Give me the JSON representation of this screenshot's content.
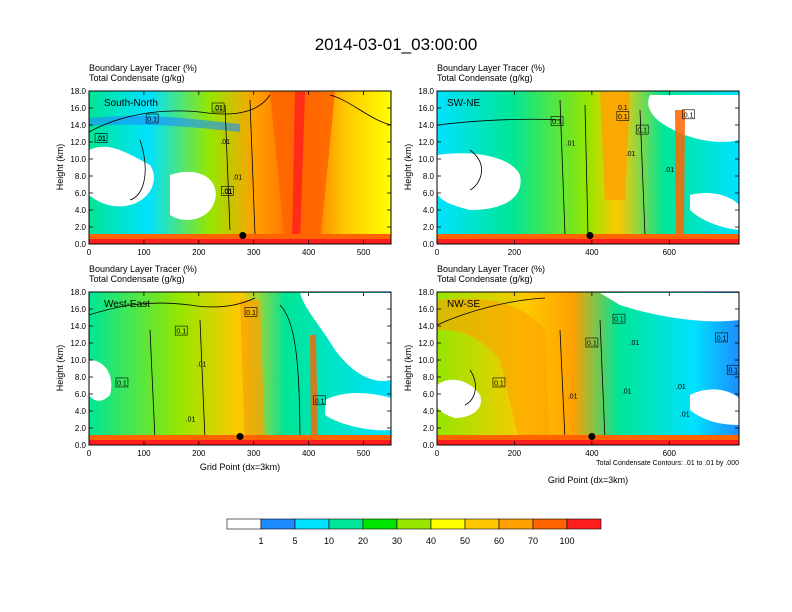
{
  "figure": {
    "title": "2014-03-01_03:00:00",
    "colorbar": {
      "colors": [
        "#ffffff",
        "#1e8cff",
        "#00e1ff",
        "#00e696",
        "#00e600",
        "#96e600",
        "#ffff00",
        "#ffc800",
        "#ffa000",
        "#ff6400",
        "#ff1e1e"
      ],
      "labels": [
        "1",
        "5",
        "10",
        "20",
        "30",
        "40",
        "50",
        "60",
        "70",
        "100"
      ]
    },
    "contour_note": "Total Condensate Contours: .01 to .01 by .000",
    "xlabel": "Grid Point (dx=3km)",
    "ylabel": "Height (km)",
    "subtitle_line1": "Boundary Layer Tracer   (%)",
    "subtitle_line2": "Total Condensate   (g/kg)"
  },
  "chart_data": [
    {
      "type": "heatmap",
      "panel": "South-North",
      "ylim": [
        0,
        18
      ],
      "xlim": [
        0,
        550
      ],
      "xticks": [
        "0",
        "100",
        "200",
        "300",
        "400",
        "500"
      ],
      "yticks": [
        "0.0",
        "2.0",
        "4.0",
        "6.0",
        "8.0",
        "10.0",
        "12.0",
        "14.0",
        "16.0",
        "18.0"
      ],
      "marker": {
        "x": 280,
        "y": 1.0
      },
      "contour_labels": [
        {
          "text": ".01",
          "x": 22,
          "y": 12.4
        },
        {
          "text": ".01",
          "x": 235,
          "y": 16.0
        },
        {
          "text": ".01",
          "x": 248,
          "y": 12.0
        },
        {
          "text": ".01",
          "x": 270,
          "y": 7.8
        },
        {
          "text": ".01",
          "x": 252,
          "y": 6.2
        }
      ],
      "condensate_labels": [
        {
          "text": ".01",
          "x": 240,
          "y": 16.7
        },
        {
          "text": ".01",
          "x": 248,
          "y": 12.0
        },
        {
          "text": ".01",
          "x": 270,
          "y": 7.8
        }
      ],
      "boxed_labels": [
        {
          "text": ".01",
          "x": 22,
          "y": 12.4
        },
        {
          "text": ".01",
          "x": 235,
          "y": 16.0
        },
        {
          "text": "0.1",
          "x": 115,
          "y": 14.7
        },
        {
          "text": ".01",
          "x": 252,
          "y": 6.2
        }
      ]
    },
    {
      "type": "heatmap",
      "panel": "SW-NE",
      "ylim": [
        0,
        18
      ],
      "xlim": [
        0,
        780
      ],
      "xticks": [
        "0",
        "200",
        "400",
        "600"
      ],
      "yticks": [
        "0.0",
        "2.0",
        "4.0",
        "6.0",
        "8.0",
        "10.0",
        "12.0",
        "14.0",
        "16.0",
        "18.0"
      ],
      "marker": {
        "x": 395,
        "y": 1.0
      },
      "contour_labels": [
        {
          "text": ".01",
          "x": 345,
          "y": 11.8
        },
        {
          "text": "0.1",
          "x": 480,
          "y": 16.0
        },
        {
          "text": ".01",
          "x": 500,
          "y": 10.6
        },
        {
          "text": ".01",
          "x": 600,
          "y": 8.7
        }
      ],
      "condensate_labels": [
        {
          "text": ".01",
          "x": 345,
          "y": 11.8
        },
        {
          "text": ".01",
          "x": 500,
          "y": 10.6
        },
        {
          "text": ".01",
          "x": 600,
          "y": 8.7
        }
      ],
      "boxed_labels": [
        {
          "text": "0.1",
          "x": 310,
          "y": 14.4
        },
        {
          "text": "0.1",
          "x": 480,
          "y": 15.0
        },
        {
          "text": "0.1",
          "x": 530,
          "y": 13.4
        },
        {
          "text": "0.1",
          "x": 650,
          "y": 15.2
        }
      ]
    },
    {
      "type": "heatmap",
      "panel": "West-East",
      "ylim": [
        0,
        18
      ],
      "xlim": [
        0,
        550
      ],
      "xticks": [
        "0",
        "100",
        "200",
        "300",
        "400",
        "500"
      ],
      "yticks": [
        "0.0",
        "2.0",
        "4.0",
        "6.0",
        "8.0",
        "10.0",
        "12.0",
        "14.0",
        "16.0",
        "18.0"
      ],
      "marker": {
        "x": 275,
        "y": 1.0
      },
      "contour_labels": [
        {
          "text": ".01",
          "x": 205,
          "y": 9.5
        },
        {
          "text": ".01",
          "x": 185,
          "y": 3.0
        }
      ],
      "condensate_labels": [
        {
          "text": ".01",
          "x": 205,
          "y": 9.5
        },
        {
          "text": ".01",
          "x": 185,
          "y": 3.0
        }
      ],
      "boxed_labels": [
        {
          "text": "0.1",
          "x": 168,
          "y": 13.4
        },
        {
          "text": "0.1",
          "x": 60,
          "y": 7.3
        },
        {
          "text": "0.1",
          "x": 295,
          "y": 15.6
        },
        {
          "text": "0.1",
          "x": 420,
          "y": 5.2
        }
      ]
    },
    {
      "type": "heatmap",
      "panel": "NW-SE",
      "ylim": [
        0,
        18
      ],
      "xlim": [
        0,
        780
      ],
      "xticks": [
        "0",
        "200",
        "400",
        "600"
      ],
      "yticks": [
        "0.0",
        "2.0",
        "4.0",
        "6.0",
        "8.0",
        "10.0",
        "12.0",
        "14.0",
        "16.0",
        "18.0"
      ],
      "marker": {
        "x": 400,
        "y": 1.0
      },
      "contour_labels": [
        {
          "text": ".01",
          "x": 630,
          "y": 6.8
        },
        {
          "text": ".01",
          "x": 490,
          "y": 6.3
        },
        {
          "text": ".01",
          "x": 350,
          "y": 5.7
        },
        {
          "text": ".01",
          "x": 640,
          "y": 3.6
        },
        {
          "text": ".01",
          "x": 510,
          "y": 12.0
        }
      ],
      "condensate_labels": [
        {
          "text": ".01",
          "x": 630,
          "y": 6.8
        },
        {
          "text": ".01",
          "x": 490,
          "y": 6.3
        },
        {
          "text": ".01",
          "x": 350,
          "y": 5.7
        },
        {
          "text": ".01",
          "x": 640,
          "y": 3.6
        },
        {
          "text": ".01",
          "x": 510,
          "y": 12.0
        }
      ],
      "boxed_labels": [
        {
          "text": "0.1",
          "x": 160,
          "y": 7.3
        },
        {
          "text": "0.1",
          "x": 400,
          "y": 12.0
        },
        {
          "text": "0.1",
          "x": 470,
          "y": 14.8
        },
        {
          "text": "0.1",
          "x": 735,
          "y": 12.6
        },
        {
          "text": "0.1",
          "x": 765,
          "y": 8.8
        }
      ]
    }
  ]
}
